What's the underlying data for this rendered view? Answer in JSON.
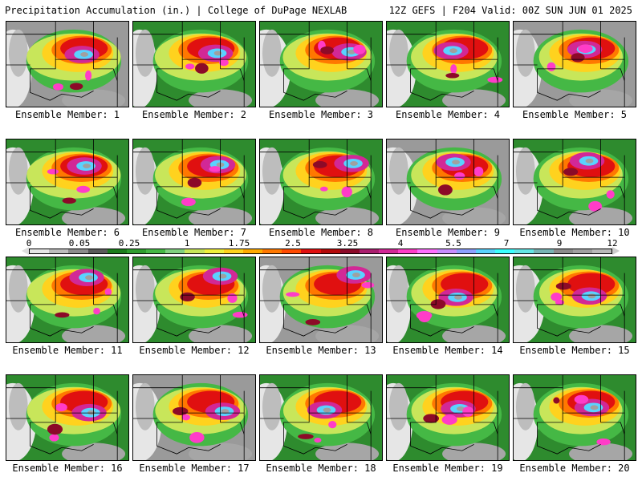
{
  "header": {
    "left": "Precipitation Accumulation (in.) | College of DuPage NEXLAB",
    "right": "12Z GEFS | F204 Valid: 00Z SUN JUN 01 2025"
  },
  "colorbar": {
    "tick_labels": [
      "0",
      "0.05",
      "0.25",
      "1",
      "1.75",
      "2.5",
      "3.25",
      "4",
      "5.5",
      "7",
      "9",
      "12"
    ],
    "colors": [
      "#e6e6e6",
      "#bdbdbd",
      "#8c8c8c",
      "#5a5a5a",
      "#1c7d1c",
      "#2e9e2e",
      "#45b845",
      "#7fd07f",
      "#c8e65a",
      "#f0f03c",
      "#ffd21e",
      "#ffaa00",
      "#ff7800",
      "#ff4a00",
      "#e01010",
      "#b40a0a",
      "#8c0a28",
      "#aa1e6e",
      "#d22896",
      "#ff3cc8",
      "#ff6eff",
      "#c88cff",
      "#8ca0ff",
      "#5ad2ff",
      "#3cffff",
      "#64e6e6",
      "#78b4b4",
      "#8c8c8c",
      "#a0a0a0",
      "#b9b9b9"
    ]
  },
  "members": [
    {
      "label": "Ensemble Member: 1"
    },
    {
      "label": "Ensemble Member: 2"
    },
    {
      "label": "Ensemble Member: 3"
    },
    {
      "label": "Ensemble Member: 4"
    },
    {
      "label": "Ensemble Member: 5"
    },
    {
      "label": "Ensemble Member: 6"
    },
    {
      "label": "Ensemble Member: 7"
    },
    {
      "label": "Ensemble Member: 8"
    },
    {
      "label": "Ensemble Member: 9"
    },
    {
      "label": "Ensemble Member: 10"
    },
    {
      "label": "Ensemble Member: 11"
    },
    {
      "label": "Ensemble Member: 12"
    },
    {
      "label": "Ensemble Member: 13"
    },
    {
      "label": "Ensemble Member: 14"
    },
    {
      "label": "Ensemble Member: 15"
    },
    {
      "label": "Ensemble Member: 16"
    },
    {
      "label": "Ensemble Member: 17"
    },
    {
      "label": "Ensemble Member: 18"
    },
    {
      "label": "Ensemble Member: 19"
    },
    {
      "label": "Ensemble Member: 20"
    }
  ]
}
